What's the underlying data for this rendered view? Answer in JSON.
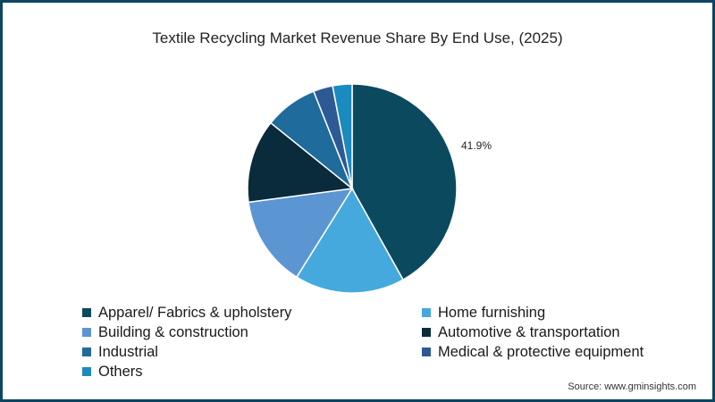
{
  "chart_data": {
    "type": "pie",
    "title": "Textile Recycling Market Revenue Share By End Use, (2025)",
    "categories": [
      "Apparel/ Fabrics & upholstery",
      "Home furnishing",
      "Building & construction",
      "Automotive & transportation",
      "Industrial",
      "Medical & protective equipment",
      "Others"
    ],
    "values": [
      41.9,
      17.0,
      14.0,
      12.9,
      8.2,
      3.0,
      3.0
    ],
    "colors": [
      "#0b4a5e",
      "#45a9de",
      "#5b96d3",
      "#0a2b3b",
      "#1f6b9b",
      "#2b5a95",
      "#1a8abf"
    ],
    "data_labels": [
      {
        "category": "Apparel/ Fabrics & upholstery",
        "text": "41.9%"
      }
    ],
    "start_angle": "12 o'clock, clockwise",
    "legend_position": "bottom",
    "source": "Source: www.gminsights.com"
  },
  "title": "Textile Recycling Market Revenue Share By End Use, (2025)",
  "data_label": "41.9%",
  "legend": [
    {
      "label": "Apparel/ Fabrics & upholstery",
      "color": "#0b4a5e"
    },
    {
      "label": "Home furnishing",
      "color": "#45a9de"
    },
    {
      "label": "Building & construction",
      "color": "#5b96d3"
    },
    {
      "label": "Automotive & transportation",
      "color": "#0a2b3b"
    },
    {
      "label": "Industrial",
      "color": "#1f6b9b"
    },
    {
      "label": "Medical & protective equipment",
      "color": "#2b5a95"
    },
    {
      "label": "Others",
      "color": "#1a8abf"
    }
  ],
  "source": "Source: www.gminsights.com"
}
